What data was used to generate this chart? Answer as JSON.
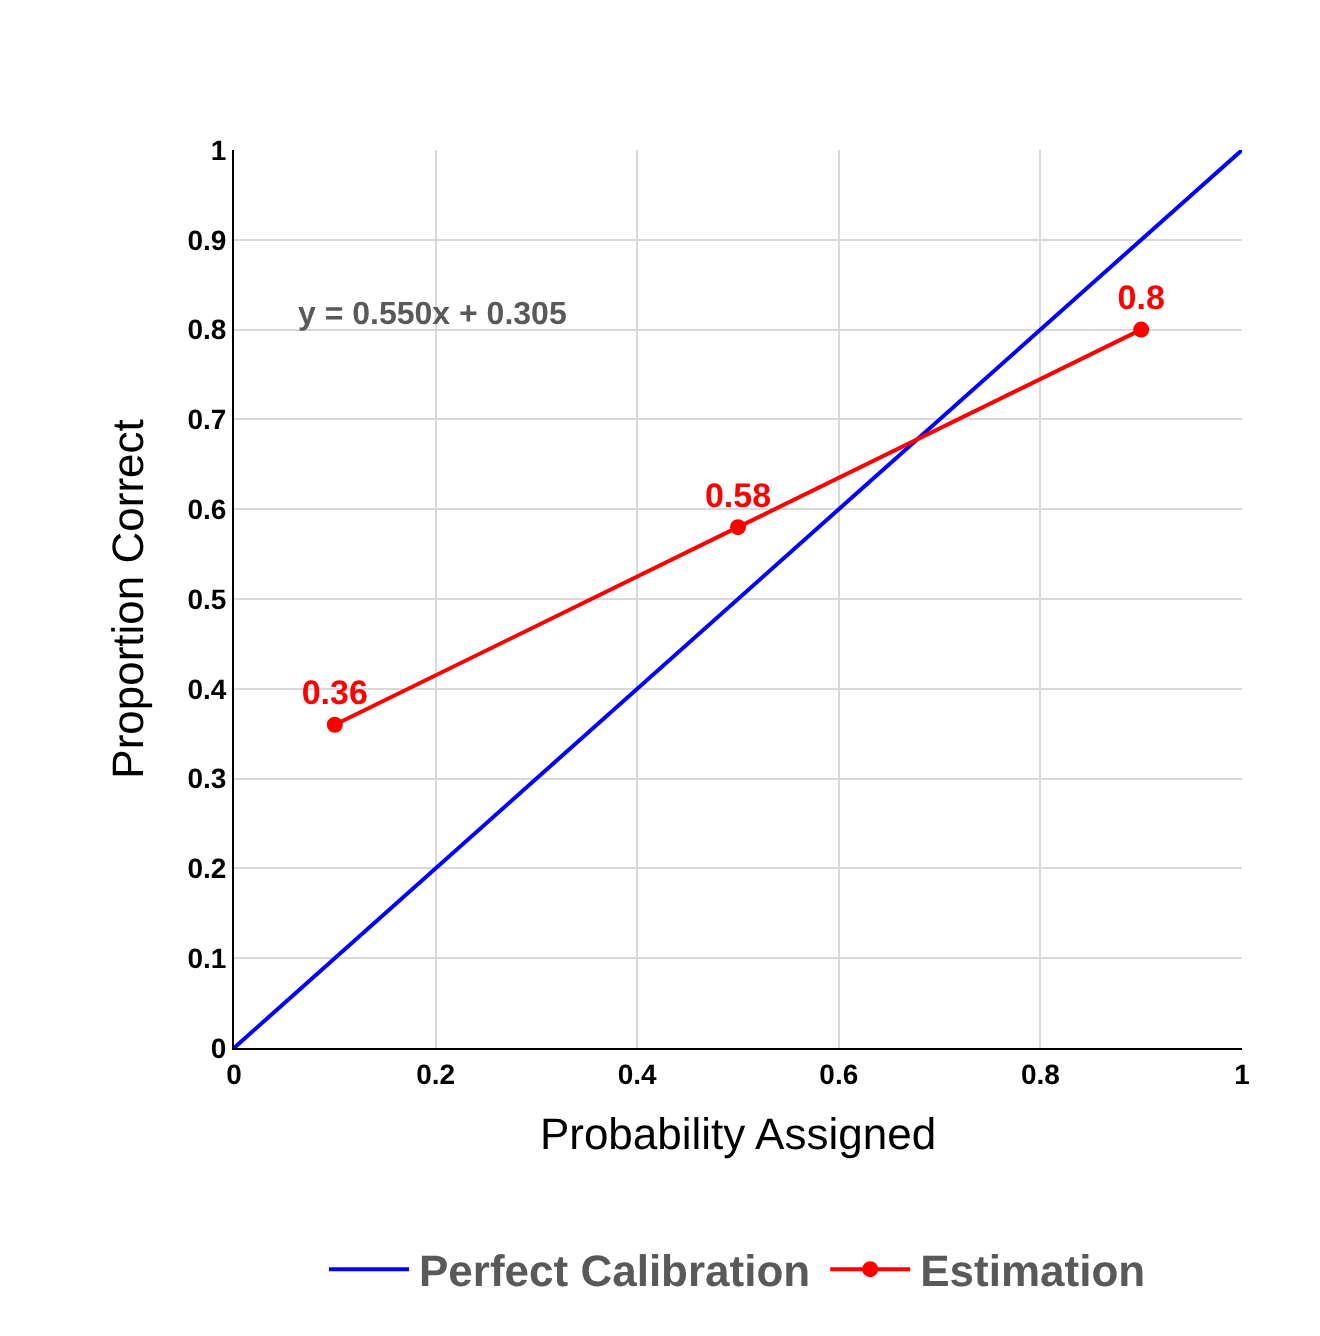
{
  "chart_data": {
    "type": "line",
    "xlabel": "Probability Assigned",
    "ylabel": "Proportion Correct",
    "xlim": [
      0,
      1
    ],
    "xticks": [
      0,
      0.2,
      0.4,
      0.6,
      0.8,
      1
    ],
    "ylim": [
      0,
      1
    ],
    "yticks": [
      0,
      0.1,
      0.2,
      0.3,
      0.4,
      0.5,
      0.6,
      0.7,
      0.8,
      0.9,
      1
    ],
    "grid": true,
    "legend": "bottom",
    "line_style": "solid",
    "annotations": [
      "y = 0.550x + 0.305"
    ],
    "series": [
      {
        "name": "Perfect Calibration",
        "color": "#0000ff",
        "x": [
          0,
          1
        ],
        "values": [
          0,
          1
        ],
        "marker": "none"
      },
      {
        "name": "Estimation",
        "color": "#ff0000",
        "x": [
          0.1,
          0.5,
          0.9
        ],
        "values": [
          0.36,
          0.58,
          0.8
        ],
        "marker": "circle",
        "value_labels": [
          "0.36",
          "0.58",
          "0.8"
        ]
      }
    ]
  }
}
